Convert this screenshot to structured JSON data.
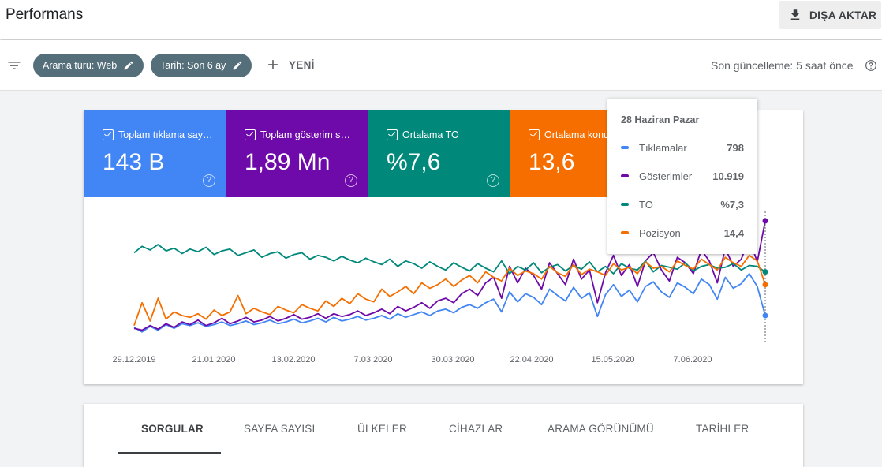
{
  "header": {
    "title": "Performans",
    "export_label": "DIŞA AKTAR"
  },
  "filters": {
    "search_type": "Arama türü: Web",
    "date": "Tarih: Son 6 ay",
    "new_label": "YENİ",
    "last_update": "Son güncelleme: 5 saat önce"
  },
  "metrics": {
    "clicks": {
      "label": "Toplam tıklama sayısı",
      "value": "143 B",
      "color": "#4285f4"
    },
    "impressions": {
      "label": "Toplam gösterim sayısı",
      "value": "1,89 Mn",
      "color": "#6f0aaa"
    },
    "ctr": {
      "label": "Ortalama TO",
      "value": "%7,6",
      "color": "#00897b"
    },
    "position": {
      "label": "Ortalama konum",
      "value": "13,6",
      "color": "#f66e00"
    }
  },
  "tooltip": {
    "date": "28 Haziran Pazar",
    "rows": [
      {
        "name": "Tıklamalar",
        "value": "798",
        "color": "#4285f4"
      },
      {
        "name": "Gösterimler",
        "value": "10.919",
        "color": "#6f0aaa"
      },
      {
        "name": "TO",
        "value": "%7,3",
        "color": "#00897b"
      },
      {
        "name": "Pozisyon",
        "value": "14,4",
        "color": "#f66e00"
      }
    ]
  },
  "chart_data": {
    "type": "line",
    "x_ticks": [
      "29.12.2019",
      "21.01.2020",
      "13.02.2020",
      "7.03.2020",
      "30.03.2020",
      "22.04.2020",
      "15.05.2020",
      "7.06.2020"
    ],
    "x_range": [
      "29.12.2019",
      "28.06.2020"
    ],
    "grid": false,
    "series": [
      {
        "name": "Tıklamalar",
        "color": "#4285f4",
        "values": [
          0.13,
          0.08,
          0.14,
          0.1,
          0.16,
          0.12,
          0.17,
          0.15,
          0.18,
          0.14,
          0.16,
          0.19,
          0.15,
          0.17,
          0.2,
          0.16,
          0.18,
          0.21,
          0.17,
          0.19,
          0.22,
          0.18,
          0.2,
          0.23,
          0.19,
          0.24,
          0.2,
          0.22,
          0.25,
          0.21,
          0.23,
          0.26,
          0.22,
          0.28,
          0.24,
          0.27,
          0.3,
          0.26,
          0.31,
          0.33,
          0.29,
          0.35,
          0.38,
          0.34,
          0.4,
          0.44,
          0.3,
          0.52,
          0.41,
          0.5,
          0.46,
          0.38,
          0.55,
          0.48,
          0.42,
          0.57,
          0.45,
          0.51,
          0.25,
          0.49,
          0.6,
          0.47,
          0.54,
          0.41,
          0.58,
          0.63,
          0.52,
          0.46,
          0.62,
          0.57,
          0.5,
          0.66,
          0.6,
          0.44,
          0.68,
          0.56,
          0.61,
          0.72,
          0.58,
          0.26
        ]
      },
      {
        "name": "Gösterimler",
        "color": "#6f0aaa",
        "values": [
          0.12,
          0.1,
          0.15,
          0.11,
          0.17,
          0.13,
          0.19,
          0.16,
          0.21,
          0.15,
          0.18,
          0.23,
          0.17,
          0.2,
          0.24,
          0.19,
          0.21,
          0.25,
          0.2,
          0.23,
          0.27,
          0.22,
          0.24,
          0.28,
          0.23,
          0.28,
          0.25,
          0.27,
          0.31,
          0.26,
          0.29,
          0.33,
          0.28,
          0.36,
          0.31,
          0.35,
          0.4,
          0.34,
          0.42,
          0.45,
          0.4,
          0.5,
          0.55,
          0.48,
          0.62,
          0.68,
          0.45,
          0.8,
          0.62,
          0.78,
          0.7,
          0.55,
          0.84,
          0.72,
          0.6,
          0.88,
          0.66,
          0.76,
          0.4,
          0.73,
          0.92,
          0.7,
          0.82,
          0.58,
          0.86,
          0.95,
          0.76,
          0.64,
          0.9,
          0.84,
          0.72,
          0.98,
          0.86,
          0.62,
          1.0,
          0.8,
          0.88,
          1.1,
          0.85,
          1.3
        ]
      },
      {
        "name": "TO",
        "color": "#00897b",
        "values": [
          0.95,
          1.02,
          0.98,
          1.04,
          0.97,
          1.0,
          0.94,
          0.99,
          0.96,
          1.01,
          0.93,
          0.97,
          0.99,
          0.92,
          0.95,
          0.98,
          0.9,
          0.94,
          0.96,
          0.89,
          0.93,
          0.95,
          0.88,
          0.92,
          0.9,
          0.86,
          0.91,
          0.87,
          0.84,
          0.89,
          0.85,
          0.82,
          0.88,
          0.8,
          0.86,
          0.83,
          0.78,
          0.85,
          0.8,
          0.76,
          0.84,
          0.79,
          0.75,
          0.83,
          0.78,
          0.74,
          0.86,
          0.72,
          0.8,
          0.76,
          0.84,
          0.73,
          0.79,
          0.82,
          0.75,
          0.81,
          0.77,
          0.85,
          0.74,
          0.8,
          0.72,
          0.83,
          0.78,
          0.76,
          0.86,
          0.74,
          0.81,
          0.79,
          0.77,
          0.84,
          0.75,
          0.8,
          0.82,
          0.78,
          0.79,
          0.83,
          0.76,
          0.81,
          0.8,
          0.74
        ]
      },
      {
        "name": "Pozisyon",
        "color": "#f66e00",
        "values": [
          0.15,
          0.4,
          0.2,
          0.45,
          0.22,
          0.3,
          0.26,
          0.24,
          0.28,
          0.22,
          0.32,
          0.26,
          0.3,
          0.48,
          0.28,
          0.34,
          0.3,
          0.27,
          0.36,
          0.32,
          0.29,
          0.38,
          0.34,
          0.31,
          0.42,
          0.36,
          0.45,
          0.39,
          0.5,
          0.44,
          0.41,
          0.55,
          0.47,
          0.52,
          0.58,
          0.5,
          0.62,
          0.56,
          0.6,
          0.66,
          0.58,
          0.65,
          0.7,
          0.62,
          0.74,
          0.68,
          0.64,
          0.78,
          0.7,
          0.75,
          0.72,
          0.66,
          0.8,
          0.73,
          0.69,
          0.82,
          0.71,
          0.77,
          0.74,
          0.7,
          0.83,
          0.76,
          0.79,
          0.72,
          0.85,
          0.78,
          0.8,
          0.74,
          0.86,
          0.81,
          0.77,
          0.88,
          0.82,
          0.76,
          0.9,
          0.84,
          0.8,
          0.92,
          0.86,
          0.6
        ]
      }
    ]
  }
}
